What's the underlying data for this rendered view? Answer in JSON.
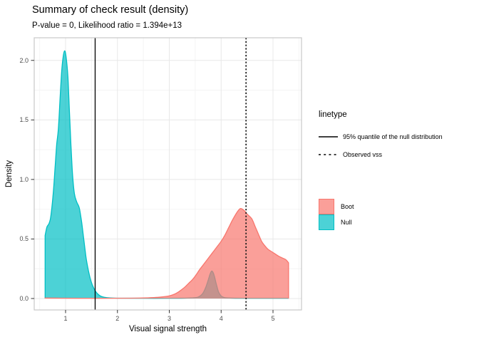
{
  "chart_data": {
    "type": "area",
    "title": "Summary of check result (density)",
    "subtitle": "P-value = 0, Likelihood ratio = 1.394e+13",
    "stats": {
      "p_value": "0",
      "likelihood_ratio": "1.394e+13"
    },
    "xlabel": "Visual signal strength",
    "ylabel": "Density",
    "xlim": [
      0.395,
      5.55
    ],
    "ylim": [
      -0.096,
      2.19
    ],
    "x_tick_values": [
      1,
      2,
      3,
      4,
      5
    ],
    "x_tick_labels": [
      "1",
      "2",
      "3",
      "4",
      "5"
    ],
    "y_tick_values": [
      0,
      0.5,
      1.0,
      1.5,
      2.0
    ],
    "y_tick_labels": [
      "0.0",
      "0.5",
      "1.0",
      "1.5",
      "2.0"
    ],
    "x_minor": [
      0.5,
      1.5,
      2.5,
      3.5,
      4.5,
      5.5
    ],
    "y_minor": [
      0.25,
      0.75,
      1.25,
      1.75
    ],
    "grid": true,
    "legend_position": "right",
    "panel_border_color": "#c8c8c8",
    "grid_major_color": "#e8e8e8",
    "grid_minor_color": "#f4f4f4",
    "series": [
      {
        "name": "Null",
        "color": "#00BFC4",
        "fill_opacity": 0.7,
        "points": [
          [
            0.605,
            0.53
          ],
          [
            0.64,
            0.6
          ],
          [
            0.675,
            0.625
          ],
          [
            0.705,
            0.665
          ],
          [
            0.735,
            0.76
          ],
          [
            0.77,
            0.93
          ],
          [
            0.8,
            1.12
          ],
          [
            0.83,
            1.3
          ],
          [
            0.86,
            1.42
          ],
          [
            0.89,
            1.65
          ],
          [
            0.92,
            1.88
          ],
          [
            0.95,
            2.02
          ],
          [
            0.98,
            2.08
          ],
          [
            1.01,
            2.03
          ],
          [
            1.045,
            1.86
          ],
          [
            1.075,
            1.56
          ],
          [
            1.105,
            1.28
          ],
          [
            1.135,
            1.04
          ],
          [
            1.17,
            0.88
          ],
          [
            1.215,
            0.81
          ],
          [
            1.265,
            0.76
          ],
          [
            1.31,
            0.64
          ],
          [
            1.35,
            0.5
          ],
          [
            1.395,
            0.345
          ],
          [
            1.44,
            0.235
          ],
          [
            1.49,
            0.145
          ],
          [
            1.545,
            0.085
          ],
          [
            1.6,
            0.047
          ],
          [
            1.66,
            0.024
          ],
          [
            1.74,
            0.011
          ],
          [
            1.86,
            0.005
          ],
          [
            2.05,
            0.003
          ],
          [
            2.5,
            0.002
          ],
          [
            3.0,
            0.002
          ],
          [
            3.3,
            0.003
          ],
          [
            3.45,
            0.006
          ],
          [
            3.56,
            0.013
          ],
          [
            3.64,
            0.04
          ],
          [
            3.7,
            0.09
          ],
          [
            3.75,
            0.155
          ],
          [
            3.79,
            0.21
          ],
          [
            3.825,
            0.23
          ],
          [
            3.865,
            0.195
          ],
          [
            3.905,
            0.125
          ],
          [
            3.95,
            0.055
          ],
          [
            4.0,
            0.022
          ],
          [
            4.06,
            0.008
          ],
          [
            4.16,
            0.004
          ],
          [
            4.45,
            0.002
          ],
          [
            4.9,
            0.002
          ],
          [
            5.3,
            0.002
          ]
        ]
      },
      {
        "name": "Boot",
        "color": "#F8766D",
        "fill_opacity": 0.7,
        "points": [
          [
            0.605,
            0.004
          ],
          [
            0.9,
            0.003
          ],
          [
            1.3,
            0.002
          ],
          [
            1.8,
            0.002
          ],
          [
            2.2,
            0.003
          ],
          [
            2.5,
            0.005
          ],
          [
            2.7,
            0.008
          ],
          [
            2.85,
            0.013
          ],
          [
            3.0,
            0.022
          ],
          [
            3.1,
            0.036
          ],
          [
            3.17,
            0.053
          ],
          [
            3.24,
            0.075
          ],
          [
            3.31,
            0.1
          ],
          [
            3.38,
            0.13
          ],
          [
            3.45,
            0.16
          ],
          [
            3.52,
            0.2
          ],
          [
            3.58,
            0.24
          ],
          [
            3.65,
            0.28
          ],
          [
            3.72,
            0.32
          ],
          [
            3.79,
            0.36
          ],
          [
            3.86,
            0.4
          ],
          [
            3.93,
            0.44
          ],
          [
            4.0,
            0.48
          ],
          [
            4.07,
            0.53
          ],
          [
            4.15,
            0.6
          ],
          [
            4.22,
            0.66
          ],
          [
            4.3,
            0.72
          ],
          [
            4.37,
            0.755
          ],
          [
            4.44,
            0.74
          ],
          [
            4.51,
            0.705
          ],
          [
            4.59,
            0.67
          ],
          [
            4.66,
            0.6
          ],
          [
            4.73,
            0.53
          ],
          [
            4.78,
            0.48
          ],
          [
            4.83,
            0.45
          ],
          [
            4.9,
            0.415
          ],
          [
            4.97,
            0.395
          ],
          [
            5.04,
            0.375
          ],
          [
            5.11,
            0.355
          ],
          [
            5.18,
            0.34
          ],
          [
            5.25,
            0.325
          ],
          [
            5.3,
            0.3
          ]
        ]
      }
    ],
    "vlines": [
      {
        "x": 1.57,
        "style": "solid",
        "color": "#000000",
        "label": "95% quantile of the null distribution"
      },
      {
        "x": 4.48,
        "style": "dashed",
        "color": "#1c1c1c",
        "label": "Observed vss"
      }
    ],
    "legends": {
      "linetype": {
        "title": "linetype",
        "entries": [
          {
            "style": "solid",
            "label": "95% quantile of the null distribution"
          },
          {
            "style": "dashed",
            "label": "Observed vss"
          }
        ]
      },
      "fill": {
        "entries": [
          {
            "color": "#F8766D",
            "label": "Boot"
          },
          {
            "color": "#00BFC4",
            "label": "Null"
          }
        ]
      }
    }
  }
}
